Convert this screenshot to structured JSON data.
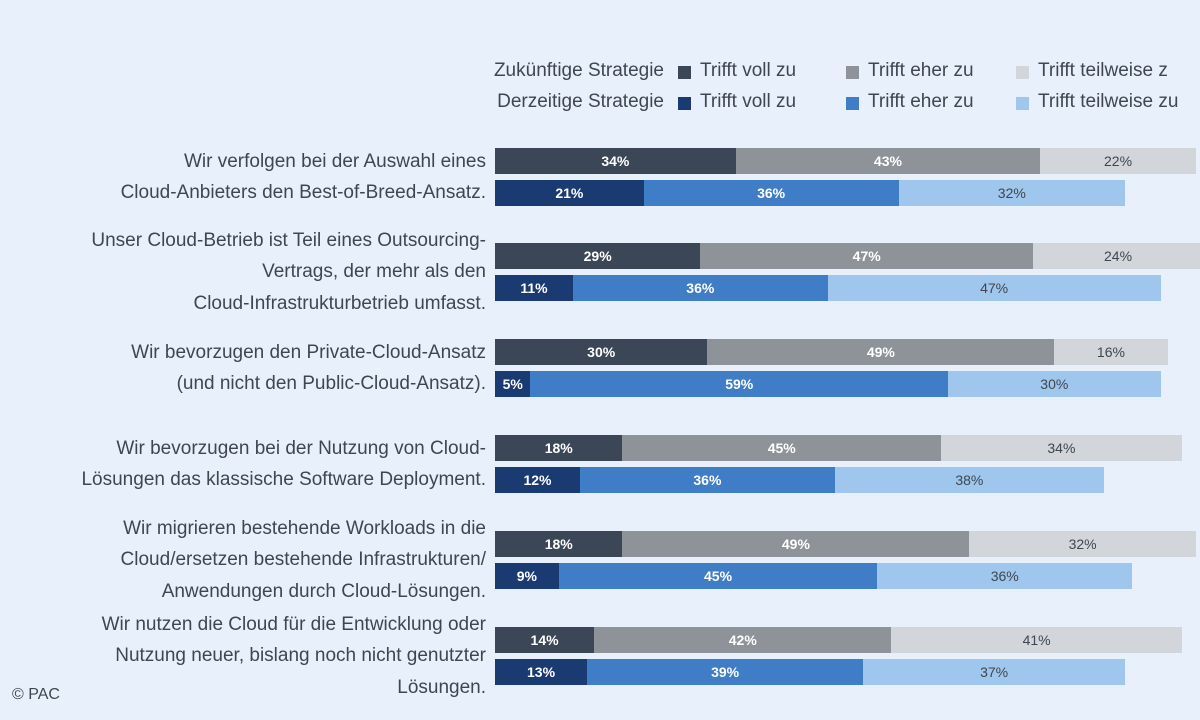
{
  "chart_data": {
    "type": "bar",
    "orientation": "horizontal-stacked",
    "legend": {
      "groups": [
        {
          "title": "Zukünftige Strategie",
          "entries": [
            {
              "label": "Trifft voll zu",
              "color": "#3b4756"
            },
            {
              "label": "Trifft eher zu",
              "color": "#8e9399"
            },
            {
              "label": "Trifft teilweise z",
              "color": "#d2d5d9"
            }
          ]
        },
        {
          "title": "Derzeitige Strategie",
          "entries": [
            {
              "label": "Trifft voll zu",
              "color": "#1a3a72"
            },
            {
              "label": "Trifft eher zu",
              "color": "#3f7ec6"
            },
            {
              "label": "Trifft teilweise zu",
              "color": "#9fc6ec"
            }
          ]
        }
      ]
    },
    "series_order": [
      "Trifft voll zu",
      "Trifft eher zu",
      "Trifft teilweise zu"
    ],
    "categories": [
      {
        "lines": [
          "Wir verfolgen bei der Auswahl eines",
          "Cloud-Anbieters den Best-of-Breed-Ansatz."
        ],
        "future": [
          34,
          43,
          22
        ],
        "current": [
          21,
          36,
          32
        ]
      },
      {
        "lines": [
          "Unser Cloud-Betrieb ist Teil eines Outsourcing-",
          "Vertrags, der mehr als den",
          "Cloud-Infrastrukturbetrieb umfasst."
        ],
        "future": [
          29,
          47,
          24
        ],
        "current": [
          11,
          36,
          47
        ]
      },
      {
        "lines": [
          "Wir bevorzugen den Private-Cloud-Ansatz",
          "(und nicht den Public-Cloud-Ansatz)."
        ],
        "future": [
          30,
          49,
          16
        ],
        "current": [
          5,
          59,
          30
        ]
      },
      {
        "lines": [
          "Wir bevorzugen bei der Nutzung von Cloud-",
          "Lösungen das klassische Software Deployment."
        ],
        "future": [
          18,
          45,
          34
        ],
        "current": [
          12,
          36,
          38
        ]
      },
      {
        "lines": [
          "Wir migrieren bestehende Workloads in die",
          "Cloud/ersetzen bestehende Infrastrukturen/",
          "Anwendungen durch Cloud-Lösungen."
        ],
        "future": [
          18,
          49,
          32
        ],
        "current": [
          9,
          45,
          36
        ]
      },
      {
        "lines": [
          "Wir nutzen die Cloud für die Entwicklung oder",
          "Nutzung neuer, bislang noch nicht genutzter",
          "Lösungen."
        ],
        "future": [
          14,
          42,
          41
        ],
        "current": [
          13,
          39,
          37
        ]
      }
    ],
    "unit": "%",
    "xlim": [
      0,
      100
    ]
  },
  "footer": {
    "copyright": "© PAC"
  }
}
